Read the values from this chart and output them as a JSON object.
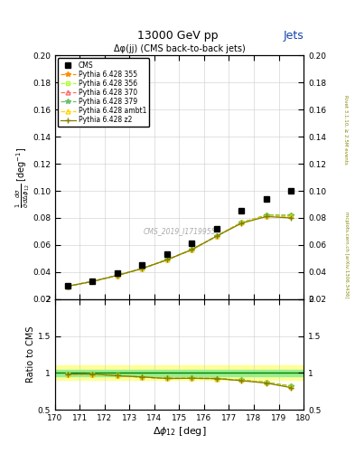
{
  "title_main": "13000 GeV pp",
  "title_right": "Jets",
  "plot_title": "Δφ(јј) (CMS back-to-back jets)",
  "ylabel_main": "$\\frac{1}{\\bar{\\sigma}}\\frac{d\\sigma}{d\\Delta\\phi_{12}}$ [deg$^{-1}$]",
  "ylabel_ratio": "Ratio to CMS",
  "xlabel": "$\\Delta\\phi_{12}$ [deg]",
  "watermark": "CMS_2019_I1719955",
  "right_label": "mcplots.cern.ch [arXiv:1306.3436]",
  "rivet_label": "Rivet 3.1.10, ≥ 2.5M events",
  "xvalues": [
    170.5,
    171.5,
    172.5,
    173.5,
    174.5,
    175.5,
    176.5,
    177.5,
    178.5,
    179.5
  ],
  "cms_y": [
    0.03,
    0.0335,
    0.039,
    0.045,
    0.053,
    0.061,
    0.072,
    0.085,
    0.094,
    0.1
  ],
  "p355_y": [
    0.0295,
    0.033,
    0.0375,
    0.0425,
    0.049,
    0.0565,
    0.0665,
    0.0765,
    0.082,
    0.082
  ],
  "p356_y": [
    0.0295,
    0.033,
    0.0375,
    0.0425,
    0.049,
    0.0565,
    0.0665,
    0.0765,
    0.082,
    0.082
  ],
  "p370_y": [
    0.0295,
    0.033,
    0.0375,
    0.0425,
    0.049,
    0.0565,
    0.0665,
    0.0765,
    0.0815,
    0.081
  ],
  "p379_y": [
    0.0295,
    0.033,
    0.0375,
    0.0425,
    0.049,
    0.0565,
    0.0665,
    0.0765,
    0.082,
    0.082
  ],
  "pambt1_y": [
    0.0295,
    0.033,
    0.0375,
    0.0425,
    0.049,
    0.0565,
    0.0665,
    0.0765,
    0.0815,
    0.081
  ],
  "pz2_y": [
    0.0295,
    0.033,
    0.0375,
    0.0425,
    0.049,
    0.0565,
    0.0665,
    0.076,
    0.081,
    0.08
  ],
  "color_355": "#FF8C00",
  "color_356": "#ADFF2F",
  "color_370": "#FF6B6B",
  "color_379": "#6BBF6B",
  "color_ambt1": "#FFD700",
  "color_z2": "#808000",
  "xlim": [
    170,
    180
  ],
  "ylim_main": [
    0.02,
    0.2
  ],
  "ylim_ratio": [
    0.5,
    2.0
  ],
  "yticks_main": [
    0.02,
    0.04,
    0.06,
    0.08,
    0.1,
    0.12,
    0.14,
    0.16,
    0.18,
    0.2
  ],
  "xticks": [
    170,
    171,
    172,
    173,
    174,
    175,
    176,
    177,
    178,
    179,
    180
  ],
  "xtick_labels_ratio": [
    "170",
    "171",
    "172",
    "173",
    "174",
    "175",
    "176",
    "177",
    "178",
    "179",
    "180"
  ]
}
